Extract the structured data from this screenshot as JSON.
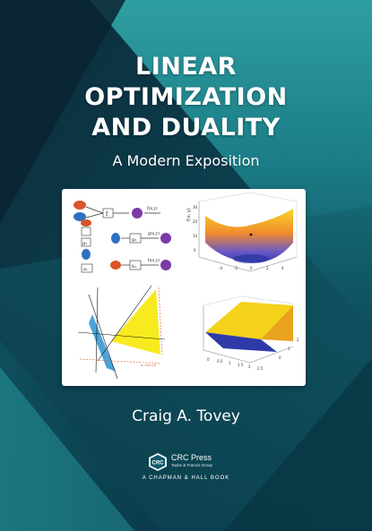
{
  "cover": {
    "title_lines": [
      "LINEAR",
      "OPTIMIZATION",
      "AND DUALITY"
    ],
    "subtitle": "A Modern Exposition",
    "author": "Craig A. Tovey",
    "publisher": {
      "name": "CRC Press",
      "subname": "Taylor & Francis Group",
      "logo_text": "CRC",
      "imprint": "A CHAPMAN & HALL BOOK"
    },
    "colors": {
      "background_dark": "#0b3a4a",
      "background_teal": "#1f8d95",
      "surface_yellow": "#f4d21b",
      "triangle_yellow": "#f7ea1e",
      "triangle_blue": "#4ca3da",
      "node_orange": "#d9542a",
      "node_purple": "#7a3aa8"
    },
    "figures": {
      "diagram_labels": {
        "f": "f",
        "g1": "g₁",
        "g2": "g₂",
        "h1": "h₁",
        "x1": "x₁",
        "f_out": "f(x,y)",
        "g_out": "g(x,y)",
        "h_out": "h(x,y)"
      },
      "surface_top": {
        "zlabel": "f(x, y)",
        "z_ticks": [
          "30",
          "20",
          "10",
          "0"
        ],
        "x_ticks": [
          "-4",
          "-2",
          "0",
          "2",
          "4"
        ]
      },
      "surface_bottom": {
        "x_ticks": [
          "0",
          "0.5",
          "1",
          "1.5",
          "2",
          "2.5"
        ],
        "y_ticks": [
          "2",
          "1",
          "0"
        ]
      },
      "lines_plot": {
        "annotation": "x₁+x₂=6"
      }
    }
  }
}
